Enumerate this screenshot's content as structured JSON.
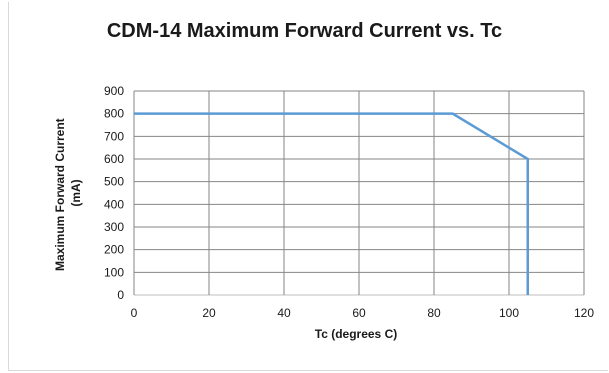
{
  "chart_data": {
    "type": "line",
    "title": "CDM-14 Maximum Forward Current vs. Tc",
    "xlabel": "Tc (degrees C)",
    "ylabel": "Maximum Forward Current (mA)",
    "ylabel_lines": [
      "Maximum Forward Current",
      "(mA)"
    ],
    "xlim": [
      0,
      120
    ],
    "ylim": [
      0,
      900
    ],
    "x_ticks": [
      0,
      20,
      40,
      60,
      80,
      100,
      120
    ],
    "y_ticks": [
      0,
      100,
      200,
      300,
      400,
      500,
      600,
      700,
      800,
      900
    ],
    "grid": true,
    "legend": "none",
    "series": [
      {
        "color": "#5b9bd5",
        "points": [
          [
            0,
            800
          ],
          [
            85,
            800
          ],
          [
            105,
            600
          ],
          [
            105,
            0
          ]
        ]
      }
    ]
  }
}
